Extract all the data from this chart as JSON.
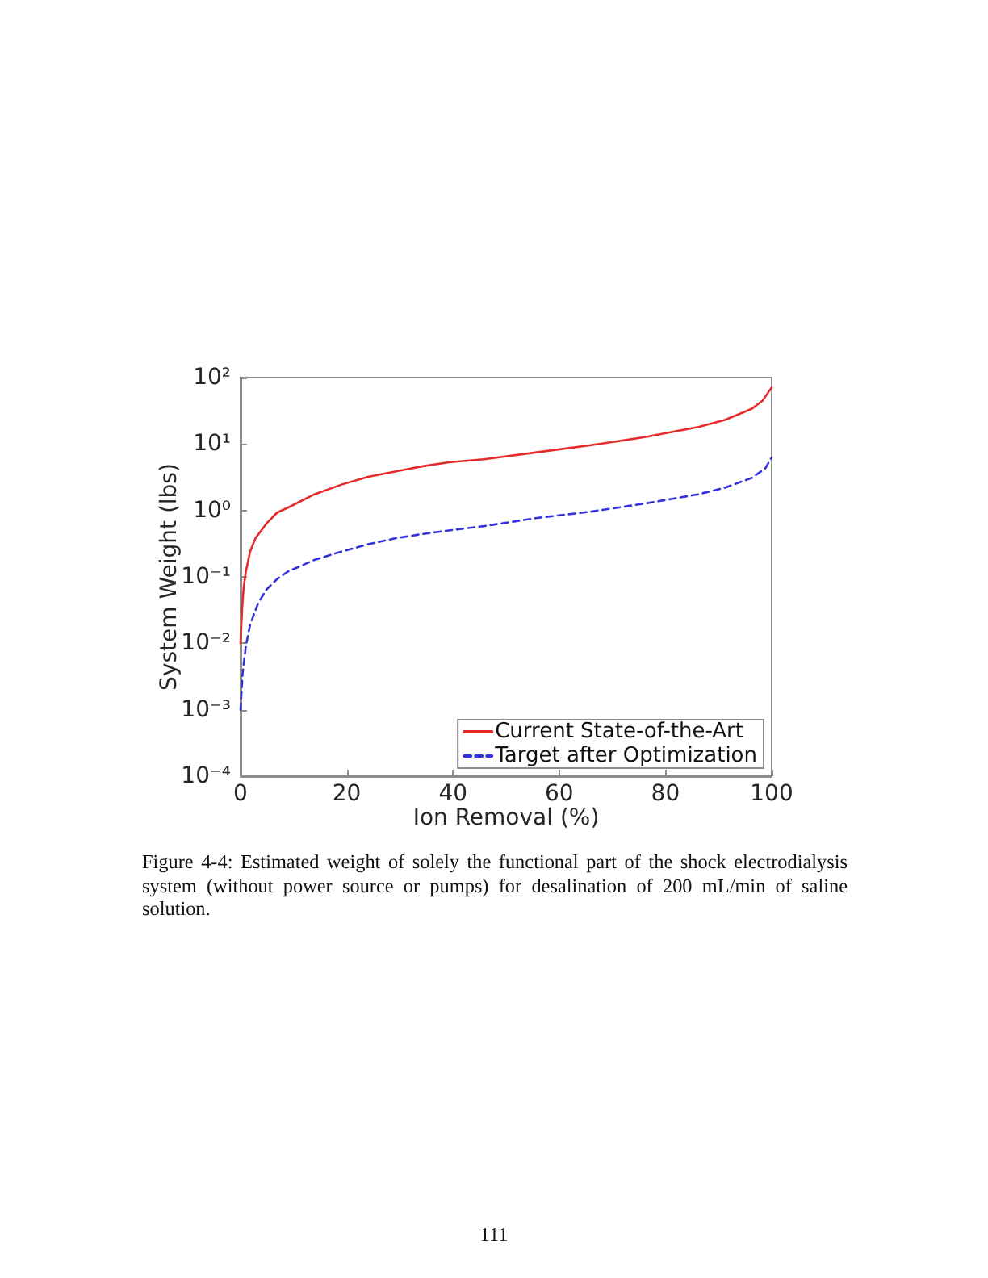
{
  "chart_data": {
    "type": "line",
    "xlabel": "Ion Removal (%)",
    "ylabel": "System Weight (lbs)",
    "annotations": [
      "Figure 4-4: Estimated weight of solely the functional part of the shock electrodialysis system (without power source or pumps) for desalination of 200 mL/min of saline solution.",
      "111"
    ],
    "xlim": [
      0,
      100
    ],
    "xticks": [
      0,
      20,
      40,
      60,
      80,
      100
    ],
    "ylim": [
      0.0001,
      100
    ],
    "yticks": [
      {
        "value": 0.0001,
        "label": "10⁻⁴"
      },
      {
        "value": 0.001,
        "label": "10⁻³"
      },
      {
        "value": 0.01,
        "label": "10⁻²"
      },
      {
        "value": 0.1,
        "label": "10⁻¹"
      },
      {
        "value": 1,
        "label": "10⁰"
      },
      {
        "value": 10,
        "label": "10¹"
      },
      {
        "value": 100,
        "label": "10²"
      }
    ],
    "log": "y",
    "grid": false,
    "legend": "bottom right",
    "marker": "none",
    "series": [
      {
        "name": "Current State-of-the-Art",
        "color": "#e42a2a",
        "line_style": "solid",
        "x": [
          0,
          0.3,
          0.6,
          1,
          1.8,
          2.8,
          4.85,
          6.9,
          8.9,
          13.9,
          19,
          24,
          29.1,
          34.1,
          39.2,
          45.8,
          55.8,
          66,
          76.1,
          86.2,
          91.2,
          96.3,
          98.3,
          99.3,
          100
        ],
        "values": [
          0.01,
          0.034,
          0.07,
          0.12,
          0.24,
          0.38,
          0.63,
          0.93,
          1.1,
          1.75,
          2.45,
          3.2,
          3.85,
          4.6,
          5.3,
          5.9,
          7.5,
          9.6,
          12.7,
          18,
          23,
          34,
          45,
          59,
          71
        ]
      },
      {
        "name": "Target after Optimization",
        "color": "#3333dd",
        "line_style": "dashed",
        "x": [
          0,
          0.4,
          1,
          1.8,
          3.3,
          4.85,
          6.9,
          8.9,
          13.9,
          19,
          24,
          29.1,
          34.1,
          39.2,
          45.8,
          55.8,
          66,
          76.1,
          86.2,
          91.2,
          96.3,
          98.8,
          100
        ],
        "values": [
          0.001,
          0.0036,
          0.009,
          0.019,
          0.04,
          0.064,
          0.093,
          0.12,
          0.18,
          0.24,
          0.31,
          0.38,
          0.44,
          0.5,
          0.58,
          0.77,
          0.96,
          1.27,
          1.75,
          2.2,
          3.1,
          4.3,
          6.3
        ]
      }
    ]
  }
}
